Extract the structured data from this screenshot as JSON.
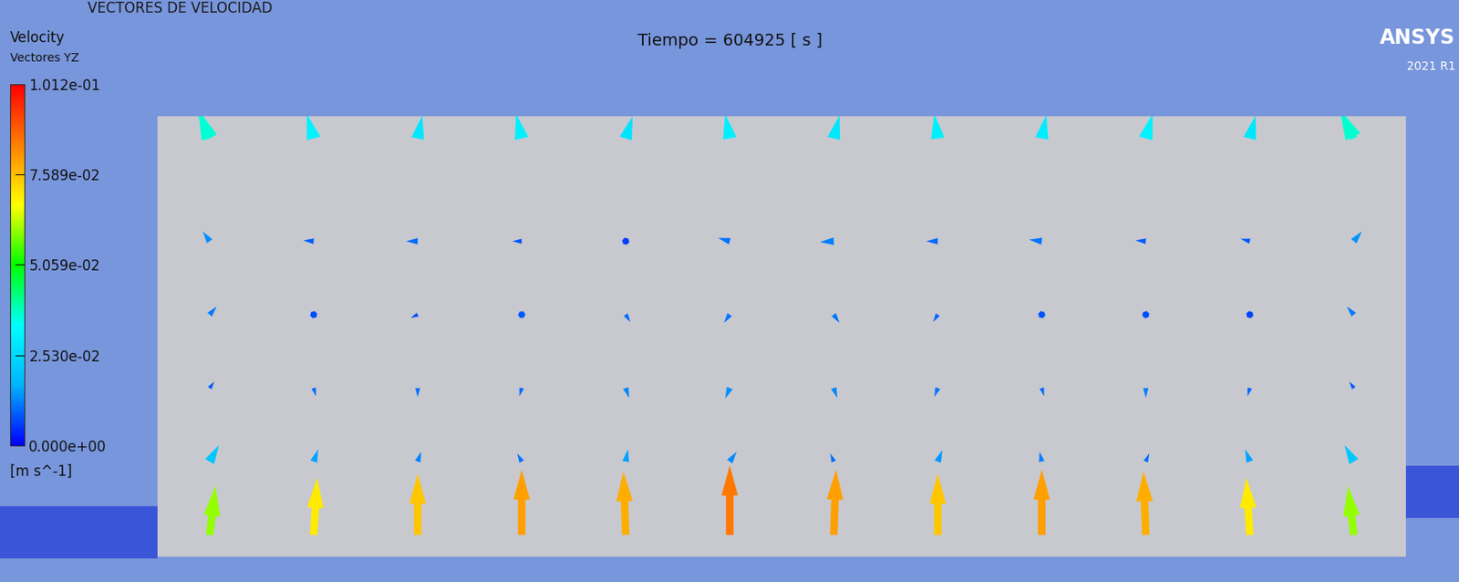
{
  "page": {
    "heading": "VECTORES DE VELOCIDAD",
    "logo": "ANSYS",
    "version": "2021 R1"
  },
  "chart_data": {
    "type": "quiver",
    "title": "Tiempo = 604925 [ s ]",
    "tick_labels": false,
    "xlim": [
      0,
      12
    ],
    "ylim": [
      0,
      6
    ],
    "x": [
      0.5,
      1.5,
      2.5,
      3.5,
      4.5,
      5.5,
      6.5,
      7.5,
      8.5,
      9.5,
      10.5,
      11.5,
      0.5,
      1.5,
      2.5,
      3.5,
      4.5,
      5.5,
      6.5,
      7.5,
      8.5,
      9.5,
      10.5,
      11.5,
      0.5,
      1.5,
      2.5,
      3.5,
      4.5,
      5.5,
      6.5,
      7.5,
      8.5,
      9.5,
      10.5,
      11.5,
      0.5,
      1.5,
      2.5,
      3.5,
      4.5,
      5.5,
      6.5,
      7.5,
      8.5,
      9.5,
      10.5,
      11.5,
      0.5,
      1.5,
      2.5,
      3.5,
      4.5,
      5.5,
      6.5,
      7.5,
      8.5,
      9.5,
      10.5,
      11.5,
      0.5,
      1.5,
      2.5,
      3.5,
      4.5,
      5.5,
      6.5,
      7.5,
      8.5,
      9.5,
      10.5,
      11.5
    ],
    "y": [
      0.3,
      0.3,
      0.3,
      0.3,
      0.3,
      0.3,
      0.3,
      0.3,
      0.3,
      0.3,
      0.3,
      0.3,
      1.3,
      1.3,
      1.3,
      1.3,
      1.3,
      1.3,
      1.3,
      1.3,
      1.3,
      1.3,
      1.3,
      1.3,
      2.3,
      2.3,
      2.3,
      2.3,
      2.3,
      2.3,
      2.3,
      2.3,
      2.3,
      2.3,
      2.3,
      2.3,
      3.3,
      3.3,
      3.3,
      3.3,
      3.3,
      3.3,
      3.3,
      3.3,
      3.3,
      3.3,
      3.3,
      3.3,
      4.3,
      4.3,
      4.3,
      4.3,
      4.3,
      4.3,
      4.3,
      4.3,
      4.3,
      4.3,
      4.3,
      4.3,
      5.7,
      5.7,
      5.7,
      5.7,
      5.7,
      5.7,
      5.7,
      5.7,
      5.7,
      5.7,
      5.7,
      5.7
    ],
    "u": [
      0.005,
      0.003,
      0,
      0,
      -0.002,
      0,
      0.002,
      0,
      0,
      -0.002,
      -0.003,
      -0.005,
      0.008,
      0.004,
      0.003,
      -0.004,
      0.002,
      0.006,
      -0.003,
      0.004,
      -0.002,
      0.003,
      -0.004,
      -0.008,
      0.004,
      0.002,
      0,
      -0.002,
      0.003,
      -0.004,
      0.003,
      -0.003,
      0.002,
      0,
      -0.002,
      -0.004,
      0.006,
      0.004,
      -0.006,
      -0.003,
      0.004,
      -0.005,
      0.005,
      -0.004,
      0.002,
      0.004,
      -0.004,
      -0.006,
      -0.006,
      -0.009,
      -0.01,
      -0.008,
      -0.006,
      -0.01,
      -0.012,
      -0.01,
      -0.011,
      -0.009,
      -0.008,
      0.007,
      -0.01,
      -0.006,
      0.004,
      -0.005,
      0.006,
      -0.004,
      0.005,
      -0.003,
      0.004,
      0.006,
      0.005,
      -0.012
    ],
    "v": [
      0.06,
      0.07,
      0.075,
      0.08,
      0.078,
      0.085,
      0.08,
      0.075,
      0.08,
      0.078,
      0.07,
      0.06,
      0.02,
      0.015,
      0.012,
      0.01,
      0.015,
      0.012,
      0.01,
      0.014,
      0.012,
      0.01,
      0.015,
      0.02,
      0.008,
      -0.01,
      -0.011,
      -0.01,
      -0.012,
      -0.013,
      -0.012,
      -0.011,
      -0.01,
      -0.012,
      -0.01,
      0.008,
      0.01,
      -0.006,
      -0.004,
      -0.008,
      -0.009,
      -0.01,
      -0.01,
      -0.009,
      -0.008,
      -0.006,
      -0.005,
      0.01,
      0.012,
      0.001,
      0,
      0,
      0.002,
      0.004,
      -0.001,
      0,
      0.002,
      0.001,
      0.003,
      0.012,
      0.035,
      0.03,
      0.028,
      0.03,
      0.027,
      0.03,
      0.028,
      0.03,
      0.029,
      0.03,
      0.028,
      0.035
    ],
    "colorbar": {
      "title": "Velocity",
      "subtitle": "Vectores YZ",
      "unit": "[m s^-1]",
      "range": [
        0,
        0.1012
      ],
      "ticks": [
        {
          "value": 0.1012,
          "label": "1.012e-01"
        },
        {
          "value": 0.07589,
          "label": "7.589e-02"
        },
        {
          "value": 0.05059,
          "label": "5.059e-02"
        },
        {
          "value": 0.0253,
          "label": "2.530e-02"
        },
        {
          "value": 0,
          "label": "0.000e+00"
        }
      ]
    }
  }
}
